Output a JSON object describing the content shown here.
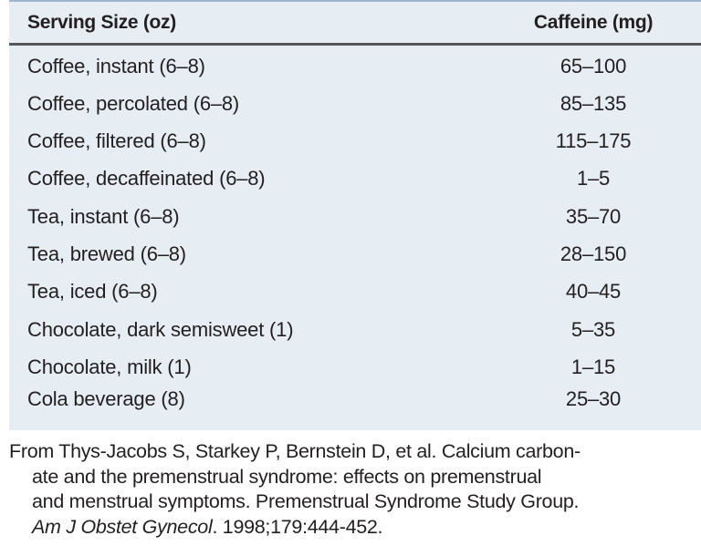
{
  "table": {
    "headers": [
      "Serving Size (oz)",
      "Caffeine (mg)"
    ],
    "rows": [
      {
        "item": "Coffee, instant (6–8)",
        "caffeine": "65–100"
      },
      {
        "item": "Coffee, percolated (6–8)",
        "caffeine": "85–135"
      },
      {
        "item": "Coffee, filtered (6–8)",
        "caffeine": "115–175"
      },
      {
        "item": "Coffee, decaffeinated (6–8)",
        "caffeine": "1–5"
      },
      {
        "item": "Tea, instant (6–8)",
        "caffeine": "35–70"
      },
      {
        "item": "Tea, brewed (6–8)",
        "caffeine": "28–150"
      },
      {
        "item": "Tea, iced (6–8)",
        "caffeine": "40–45"
      },
      {
        "item": "Chocolate, dark semisweet (1)",
        "caffeine": "5–35"
      },
      {
        "item": "Chocolate, milk (1)",
        "caffeine": "1–15"
      },
      {
        "item": "Cola beverage (8)",
        "caffeine": "25–30"
      }
    ]
  },
  "footnote": {
    "line1": "From Thys-Jacobs S, Starkey P, Bernstein D, et al. Calcium carbon-",
    "line2": "ate and the premenstrual syndrome: effects on premenstrual",
    "line3": "and menstrual symptoms. Premenstrual Syndrome Study Group.",
    "journal": "Am J Obstet Gynecol",
    "citation": ". 1998;179:444-452."
  }
}
